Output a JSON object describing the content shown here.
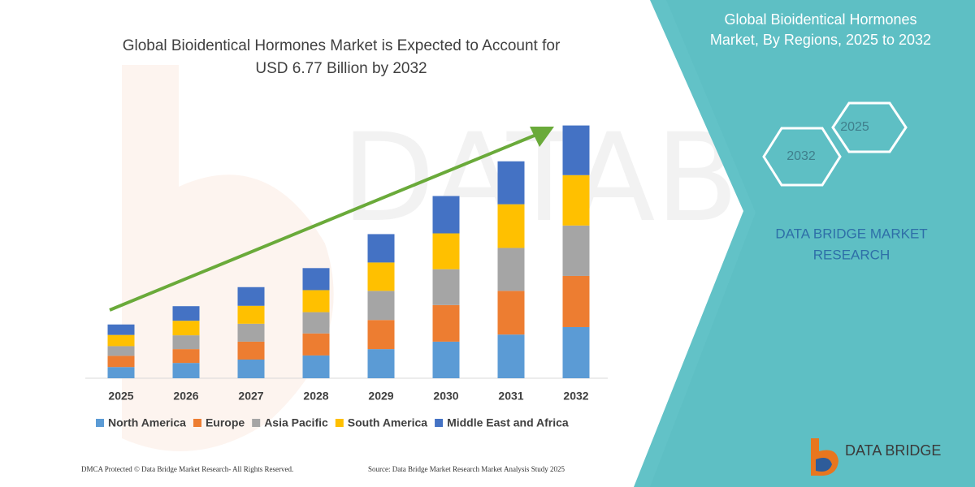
{
  "chart_data": {
    "type": "stacked-bar",
    "title": [
      "Global Bioidentical Hormones Market is Expected to Account for",
      "USD 6.77 Billion by 2032"
    ],
    "categories": [
      "2025",
      "2026",
      "2027",
      "2028",
      "2029",
      "2030",
      "2031",
      "2032"
    ],
    "series": [
      {
        "name": "North America",
        "color": "#5b9bd5",
        "values": [
          0.3,
          0.41,
          0.5,
          0.61,
          0.78,
          0.98,
          1.17,
          1.37
        ]
      },
      {
        "name": "Europe",
        "color": "#ed7d31",
        "values": [
          0.3,
          0.37,
          0.48,
          0.59,
          0.78,
          0.98,
          1.17,
          1.37
        ]
      },
      {
        "name": "Asia Pacific",
        "color": "#a5a5a5",
        "values": [
          0.26,
          0.37,
          0.48,
          0.57,
          0.78,
          0.96,
          1.15,
          1.35
        ]
      },
      {
        "name": "South America",
        "color": "#ffc000",
        "values": [
          0.3,
          0.39,
          0.48,
          0.59,
          0.76,
          0.96,
          1.17,
          1.35
        ]
      },
      {
        "name": "Middle East and Africa",
        "color": "#4472c4",
        "values": [
          0.28,
          0.39,
          0.5,
          0.59,
          0.76,
          1.0,
          1.15,
          1.33
        ]
      }
    ],
    "ylim": [
      0,
      7
    ]
  },
  "panel": {
    "heading": [
      "Global Bioidentical Hormones",
      "Market, By Regions, 2025 to 2032"
    ],
    "hexagons": [
      "2025",
      "2032"
    ],
    "brand": [
      "DATA BRIDGE MARKET",
      "RESEARCH"
    ]
  },
  "logo": "DATA BRIDGE",
  "footer": {
    "left": "DMCA Protected © Data Bridge Market Research- All Rights Reserved.",
    "right": "Source: Data Bridge Market Research Market Analysis Study 2025"
  }
}
